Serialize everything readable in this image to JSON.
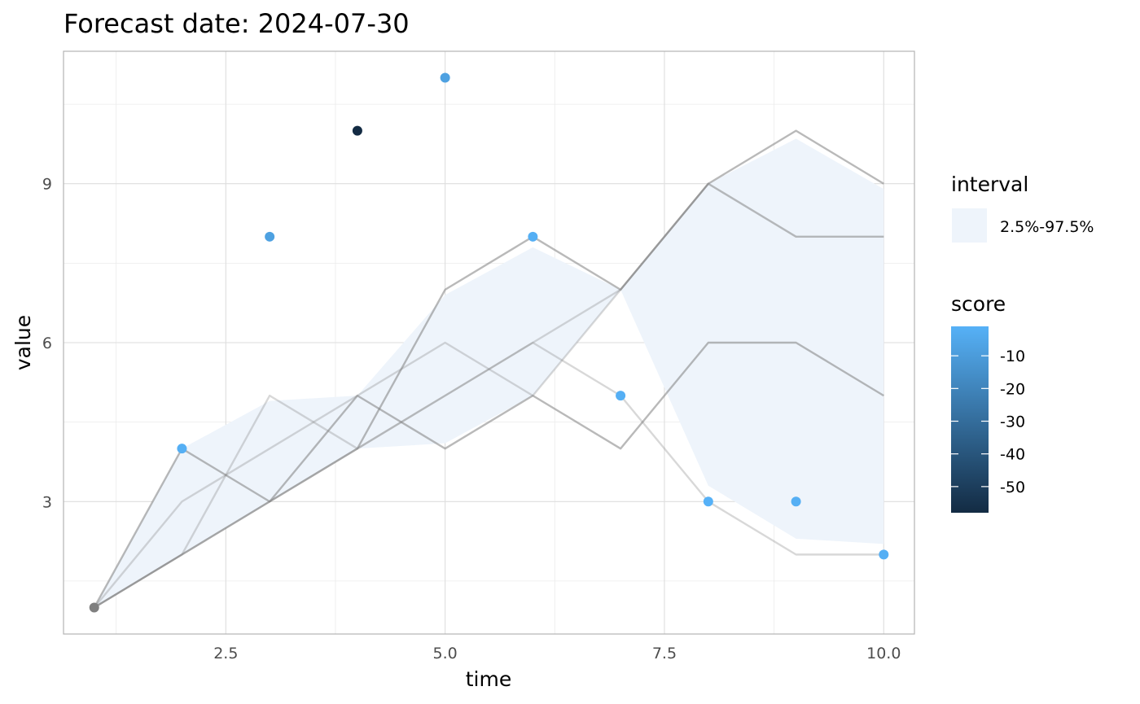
{
  "chart_data": {
    "type": "line",
    "title": "Forecast date: 2024-07-30",
    "xlabel": "time",
    "ylabel": "value",
    "xlim": [
      0.65,
      10.35
    ],
    "ylim": [
      0.5,
      11.5
    ],
    "x_ticks": [
      2.5,
      5.0,
      7.5,
      10.0
    ],
    "x_tick_labels": [
      "2.5",
      "5.0",
      "7.5",
      "10.0"
    ],
    "y_ticks": [
      3,
      6,
      9
    ],
    "y_tick_labels": [
      "3",
      "6",
      "9"
    ],
    "grid": true,
    "interval": {
      "name": "2.5%-97.5%",
      "color": "#eef4fb",
      "x": [
        1,
        2,
        3,
        4,
        5,
        6,
        7,
        8,
        9,
        10
      ],
      "lower": [
        1,
        2,
        3,
        4,
        4.1,
        5,
        7,
        3.3,
        2.3,
        2.2
      ],
      "upper": [
        1,
        4,
        4.9,
        5,
        6.9,
        7.8,
        7,
        9,
        9.85,
        8.9
      ]
    },
    "sample_paths": [
      {
        "x": [
          1,
          2,
          3,
          4,
          5,
          6,
          7,
          8,
          9,
          10
        ],
        "values": [
          1,
          4,
          3,
          4,
          7,
          8,
          7,
          9,
          10,
          9
        ],
        "opacity": 0.55
      },
      {
        "x": [
          1,
          2,
          3,
          4,
          5,
          6,
          7,
          8,
          9,
          10
        ],
        "values": [
          1,
          2,
          3,
          5,
          4,
          5,
          4,
          6,
          6,
          5
        ],
        "opacity": 0.55
      },
      {
        "x": [
          1,
          2,
          3,
          4,
          5,
          6,
          7,
          8,
          9,
          10
        ],
        "values": [
          1,
          2,
          5,
          4,
          5,
          6,
          5,
          3,
          2,
          2
        ],
        "opacity": 0.3
      },
      {
        "x": [
          1,
          2,
          3,
          4,
          5,
          6,
          7,
          8,
          9,
          10
        ],
        "values": [
          1,
          3,
          4,
          5,
          6,
          5,
          7,
          9,
          8,
          8
        ],
        "opacity": 0.3
      },
      {
        "x": [
          1,
          2,
          3,
          4,
          5,
          6,
          7,
          8,
          9,
          10
        ],
        "values": [
          1,
          2,
          3,
          4,
          5,
          6,
          7,
          9,
          8,
          8
        ],
        "opacity": 0.3
      }
    ],
    "observed": {
      "x": [
        1,
        2,
        3,
        4,
        5,
        6,
        7,
        8,
        9,
        10
      ],
      "values": [
        1,
        4,
        8,
        10,
        11,
        8,
        5,
        3,
        3,
        2
      ],
      "score": [
        null,
        -2,
        -8,
        -58,
        -8,
        -2,
        -2,
        -1,
        -2,
        -2
      ],
      "na_color": "#7f7f7f"
    },
    "legend": {
      "interval_title": "interval",
      "interval_label": "2.5%-97.5%",
      "score_title": "score",
      "score_ticks": [
        -10,
        -20,
        -30,
        -40,
        -50
      ],
      "score_tick_labels": [
        "-10",
        "-20",
        "-30",
        "-40",
        "-50"
      ],
      "score_range": [
        -58,
        -1
      ],
      "score_low_color": "#132b43",
      "score_high_color": "#56b1f7",
      "placement": "right"
    }
  }
}
